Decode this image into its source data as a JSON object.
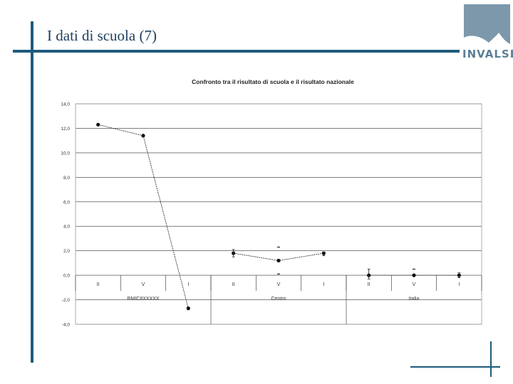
{
  "slide": {
    "title": "I dati di scuola (7)"
  },
  "logo": {
    "text": "INVALSI",
    "color": "#7d98ab"
  },
  "colors": {
    "accent": "#1f5b7c"
  },
  "chart_data": {
    "type": "line",
    "title": "Confronto tra il risultato di scuola e il risultato nazionale",
    "xlabel": "",
    "ylabel": "",
    "ylim": [
      -4.0,
      14.0
    ],
    "yticks": [
      "14,0",
      "12,0",
      "10,0",
      "8,0",
      "6,0",
      "4,0",
      "2,0",
      "0,0",
      "-2,0",
      "-4,0"
    ],
    "grid": "horizontal",
    "legend": "none",
    "categories": [
      "II",
      "V",
      "I",
      "II",
      "V",
      "I",
      "II",
      "V",
      "I"
    ],
    "groups": [
      "RMIC8XXXXX",
      "Centro",
      "Italia"
    ],
    "series": [
      {
        "segments": [
          {
            "points": [
              {
                "x": 0,
                "y": 12.3
              },
              {
                "x": 1,
                "y": 11.4
              },
              {
                "x": 2,
                "y": -2.7
              }
            ]
          },
          {
            "points": [
              {
                "x": 3,
                "y": 1.8
              },
              {
                "x": 4,
                "y": 1.2
              },
              {
                "x": 5,
                "y": 1.8
              }
            ]
          },
          {
            "points": [
              {
                "x": 6,
                "y": 0.0
              },
              {
                "x": 7,
                "y": 0.0
              },
              {
                "x": 8,
                "y": 0.0
              }
            ]
          }
        ],
        "error_bars": [
          {
            "x": 3,
            "low": 1.5,
            "high": 2.1
          },
          {
            "x": 5,
            "low": 1.6,
            "high": 1.9
          },
          {
            "x": 6,
            "low": -0.3,
            "high": 0.5
          },
          {
            "x": 8,
            "low": -0.2,
            "high": 0.2
          }
        ],
        "markers_only": [
          {
            "x": 4,
            "y": 2.3
          },
          {
            "x": 4,
            "y": 0.1
          },
          {
            "x": 7,
            "y": 0.5
          }
        ]
      }
    ]
  }
}
